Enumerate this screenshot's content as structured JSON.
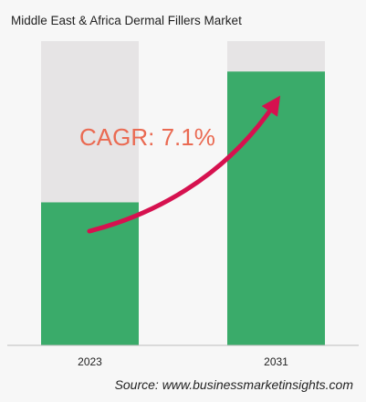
{
  "chart_data": {
    "type": "bar",
    "title": "Middle East & Africa Dermal Fillers Market",
    "categories": [
      "2023",
      "2031"
    ],
    "values": [
      0.47,
      0.9
    ],
    "value_scale": "relative (no axis printed)",
    "ylim": [
      0,
      1
    ],
    "annotation": "CAGR: 7.1%",
    "source": "Source: www.businessmarketinsights.com",
    "colors": {
      "bar": "#3aab6a",
      "bar_background": "#e6e4e5",
      "arrow": "#d6114f",
      "annotation": "#ea6a52",
      "page_background": "#f7f7f7"
    }
  }
}
